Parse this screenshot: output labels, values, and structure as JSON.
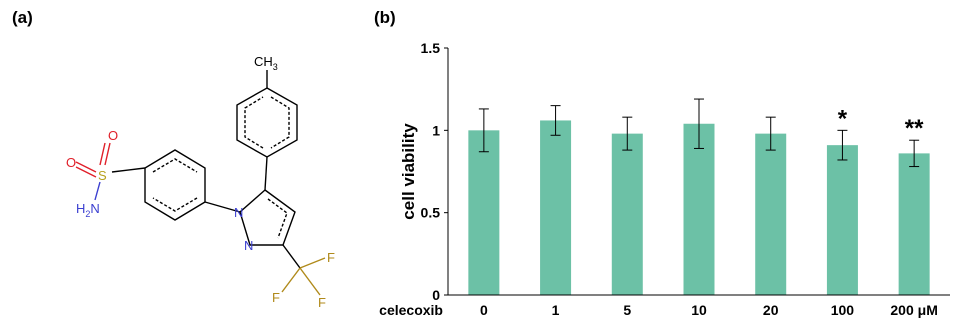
{
  "panels": {
    "a": "(a)",
    "b": "(b)"
  },
  "molecule": {
    "atoms": {
      "ch3": "CH",
      "ch3_sub": "3",
      "s": "S",
      "o1": "O",
      "o2": "O",
      "nh2": "H",
      "nh2_sub": "2",
      "nh2_n": "N",
      "n1": "N",
      "n2": "N",
      "f1": "F",
      "f2": "F",
      "f3": "F"
    },
    "colors": {
      "bond": "#000000",
      "sulfur": "#b8a21e",
      "oxygen": "#e0202a",
      "nitrogen": "#3b3fd0",
      "fluorine": "#b08a1a"
    }
  },
  "chart_data": {
    "type": "bar",
    "categories": [
      "0",
      "1",
      "5",
      "10",
      "20",
      "100",
      "200 μM"
    ],
    "values": [
      1.0,
      1.06,
      0.98,
      1.04,
      0.98,
      0.91,
      0.86
    ],
    "errors": [
      0.13,
      0.09,
      0.1,
      0.15,
      0.1,
      0.09,
      0.08
    ],
    "significance": [
      "",
      "",
      "",
      "",
      "",
      "*",
      "**"
    ],
    "xlabel": "celecoxib",
    "ylabel": "cell viability",
    "ylim": [
      0,
      1.5
    ],
    "yticks": [
      "0",
      "0.5",
      "1",
      "1.5"
    ],
    "grid": false,
    "bar_color": "#6cc1a6"
  }
}
